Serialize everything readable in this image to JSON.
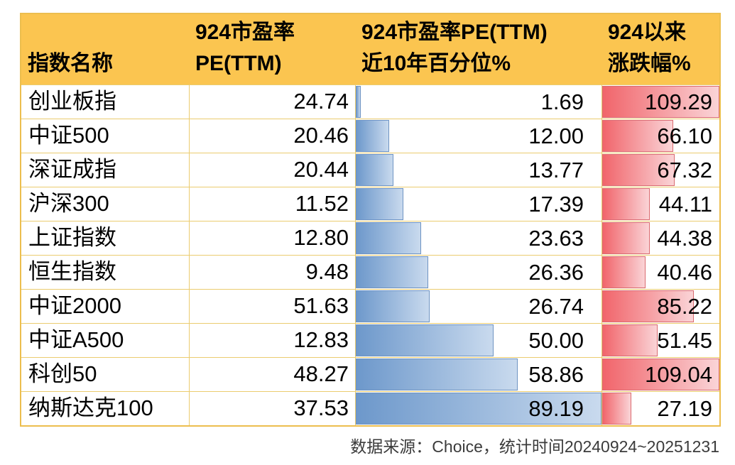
{
  "table": {
    "header": {
      "col1": "指数名称",
      "col2_line1": "924市盈率",
      "col2_line2": "PE(TTM)",
      "col3_line1": "924市盈率PE(TTM)",
      "col3_line2": "近10年百分位%",
      "col4_line1": "924以来",
      "col4_line2": "涨跌幅%"
    },
    "rows": [
      {
        "name": "创业板指",
        "pe": "24.74",
        "percentile": "1.69",
        "change": "109.29"
      },
      {
        "name": "中证500",
        "pe": "20.46",
        "percentile": "12.00",
        "change": "66.10"
      },
      {
        "name": "深证成指",
        "pe": "20.44",
        "percentile": "13.77",
        "change": "67.32"
      },
      {
        "name": "沪深300",
        "pe": "11.52",
        "percentile": "17.39",
        "change": "44.11"
      },
      {
        "name": "上证指数",
        "pe": "12.80",
        "percentile": "23.63",
        "change": "44.38"
      },
      {
        "name": "恒生指数",
        "pe": "9.48",
        "percentile": "26.36",
        "change": "40.46"
      },
      {
        "name": "中证2000",
        "pe": "51.63",
        "percentile": "26.74",
        "change": "85.22"
      },
      {
        "name": "中证A500",
        "pe": "12.83",
        "percentile": "50.00",
        "change": "51.45"
      },
      {
        "name": "科创50",
        "pe": "48.27",
        "percentile": "58.86",
        "change": "109.04"
      },
      {
        "name": "纳斯达克100",
        "pe": "37.53",
        "percentile": "89.19",
        "change": "27.19"
      }
    ]
  },
  "footer": {
    "text": "数据来源：Choice，统计时间20240924~20251231"
  },
  "colors": {
    "header_background": "#FBC550",
    "grid_line": "#EBCC6F",
    "outer_border": "#ECBE4E",
    "blue_bar_start": "#6D98CB",
    "blue_bar_end": "#C9DAEE",
    "blue_bar_border": "#6E93C2",
    "red_bar_start": "#F1656B",
    "red_bar_end": "#FAD4D7",
    "red_bar_border": "#DA6A6F",
    "footer_text": "#3b3b3b"
  },
  "chart_data": {
    "type": "table",
    "title": "",
    "columns": [
      "指数名称",
      "924市盈率PE(TTM)",
      "924市盈率PE(TTM)近10年百分位%",
      "924以来涨跌幅%"
    ],
    "rows": [
      [
        "创业板指",
        24.74,
        1.69,
        109.29
      ],
      [
        "中证500",
        20.46,
        12.0,
        66.1
      ],
      [
        "深证成指",
        20.44,
        13.77,
        67.32
      ],
      [
        "沪深300",
        11.52,
        17.39,
        44.11
      ],
      [
        "上证指数",
        12.8,
        23.63,
        44.38
      ],
      [
        "恒生指数",
        9.48,
        26.36,
        40.46
      ],
      [
        "中证2000",
        51.63,
        26.74,
        85.22
      ],
      [
        "中证A500",
        12.83,
        50.0,
        51.45
      ],
      [
        "科创50",
        48.27,
        58.86,
        109.04
      ],
      [
        "纳斯达克100",
        37.53,
        89.19,
        27.19
      ]
    ],
    "databars": {
      "percentile_column": {
        "style": "blue-gradient",
        "scale_min": 0,
        "scale_max": 89.19
      },
      "change_column": {
        "style": "red-gradient",
        "scale_min": 0,
        "scale_max": 109.29
      }
    },
    "source_note": "数据来源：Choice，统计时间20240924~20251231"
  }
}
